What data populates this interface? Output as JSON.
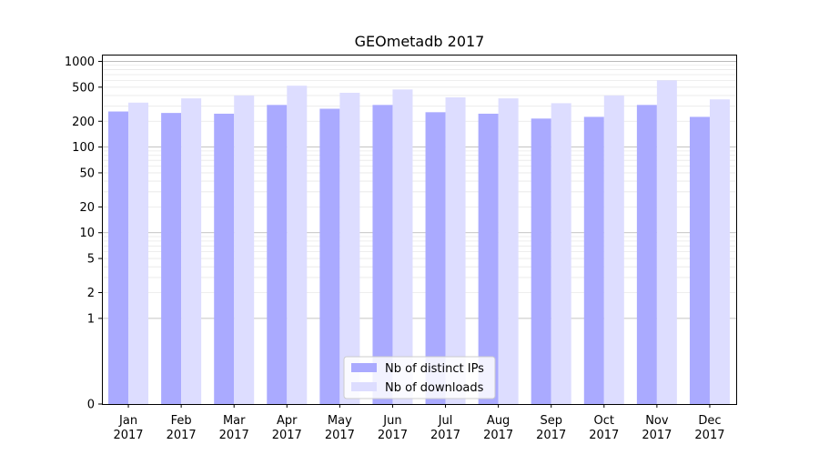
{
  "chart_data": {
    "type": "bar",
    "title": "GEOmetadb 2017",
    "xlabel": "",
    "ylabel": "",
    "yscale": "symlog",
    "ylim": [
      0,
      1200
    ],
    "yticks": [
      0,
      1,
      2,
      5,
      10,
      20,
      50,
      100,
      200,
      500,
      1000
    ],
    "grid": true,
    "legend_position": "bottom-center",
    "categories": [
      [
        "Jan",
        "2017"
      ],
      [
        "Feb",
        "2017"
      ],
      [
        "Mar",
        "2017"
      ],
      [
        "Apr",
        "2017"
      ],
      [
        "May",
        "2017"
      ],
      [
        "Jun",
        "2017"
      ],
      [
        "Jul",
        "2017"
      ],
      [
        "Aug",
        "2017"
      ],
      [
        "Sep",
        "2017"
      ],
      [
        "Oct",
        "2017"
      ],
      [
        "Nov",
        "2017"
      ],
      [
        "Dec",
        "2017"
      ]
    ],
    "series": [
      {
        "name": "Nb of distinct IPs",
        "color": "#aaaaff",
        "values": [
          260,
          250,
          245,
          310,
          280,
          310,
          255,
          245,
          215,
          225,
          310,
          225
        ]
      },
      {
        "name": "Nb of downloads",
        "color": "#ddddff",
        "values": [
          330,
          370,
          400,
          520,
          430,
          470,
          380,
          370,
          325,
          400,
          600,
          360
        ]
      }
    ]
  }
}
